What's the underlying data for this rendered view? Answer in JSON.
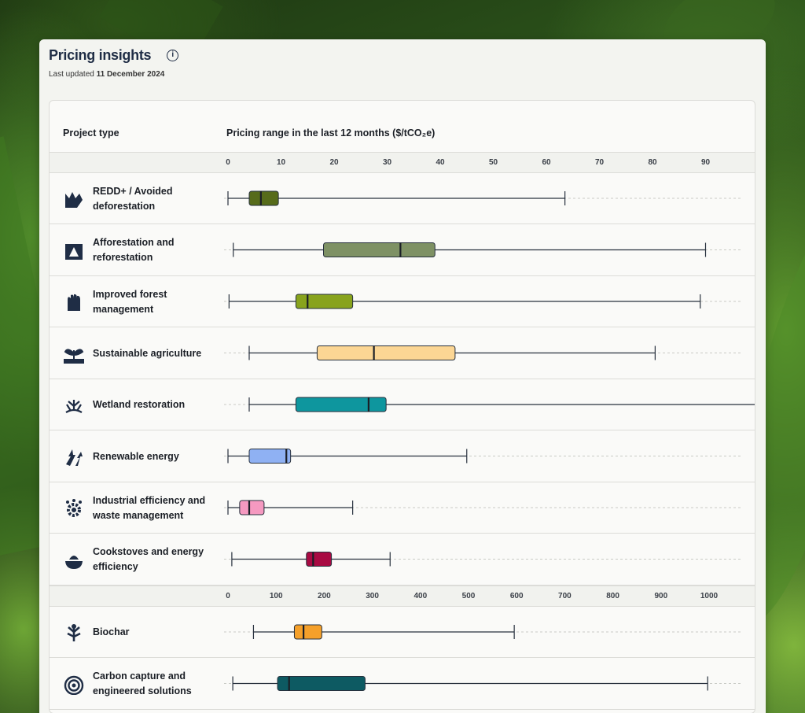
{
  "header": {
    "title": "Pricing insights",
    "info_icon": "info-icon",
    "updated_prefix": "Last updated",
    "updated_date": "11 December 2024"
  },
  "table": {
    "col1": "Project type",
    "col2": "Pricing range in the last 12 months ($/tCO₂e)"
  },
  "chart_data": [
    {
      "type": "boxplot",
      "unit": "$/tCO₂e",
      "xlim": [
        0,
        100
      ],
      "ticks": [
        0,
        10,
        20,
        30,
        40,
        50,
        60,
        70,
        80,
        90
      ],
      "series": [
        {
          "name": "REDD+ / Avoided deforestation",
          "icon": "redd-icon",
          "color": "#566b1a",
          "min": 0,
          "q1": 4,
          "median": 6.2,
          "q3": 9.5,
          "max": 63.5
        },
        {
          "name": "Afforestation and reforestation",
          "icon": "afforestation-icon",
          "color": "#7e9164",
          "min": 1,
          "q1": 18,
          "median": 32.5,
          "q3": 39,
          "max": 90
        },
        {
          "name": "Improved forest management",
          "icon": "forest-management-icon",
          "color": "#88a31d",
          "min": 0.2,
          "q1": 12.8,
          "median": 15,
          "q3": 23.5,
          "max": 89
        },
        {
          "name": "Sustainable agriculture",
          "icon": "agriculture-icon",
          "color": "#fcd694",
          "min": 4,
          "q1": 16.8,
          "median": 27.5,
          "q3": 42.8,
          "max": 80.5
        },
        {
          "name": "Wetland restoration",
          "icon": "wetland-icon",
          "color": "#0e969e",
          "min": 4,
          "q1": 12.8,
          "median": 26.5,
          "q3": 29.8,
          "max": 100
        },
        {
          "name": "Renewable energy",
          "icon": "renewable-energy-icon",
          "color": "#8fb1f3",
          "min": 0,
          "q1": 4,
          "median": 11,
          "q3": 11.8,
          "max": 45
        },
        {
          "name": "Industrial efficiency and waste management",
          "icon": "industrial-icon",
          "color": "#f599c0",
          "min": 0,
          "q1": 2.2,
          "median": 4,
          "q3": 6.8,
          "max": 23.5
        }
      ]
    },
    {
      "type": "boxplot",
      "unit": "$/tCO₂e",
      "xlim": [
        0,
        1070
      ],
      "ticks": [
        0,
        100,
        200,
        300,
        400,
        500,
        600,
        700,
        800,
        900,
        1000
      ],
      "series": [
        {
          "name": "Cookstoves and energy efficiency",
          "icon": "cookstove-icon",
          "color": "#a80a42",
          "min": 8,
          "q1": 163,
          "median": 177,
          "q3": 215,
          "max": 337
        },
        {
          "name": "Biochar",
          "icon": "biochar-icon",
          "color": "#f5a02a",
          "min": 53,
          "q1": 138,
          "median": 157,
          "q3": 195,
          "max": 595
        },
        {
          "name": "Carbon capture and engineered solutions",
          "icon": "carbon-capture-icon",
          "color": "#0d5a62",
          "min": 10,
          "q1": 103,
          "median": 127,
          "q3": 285,
          "max": 997
        }
      ]
    }
  ]
}
